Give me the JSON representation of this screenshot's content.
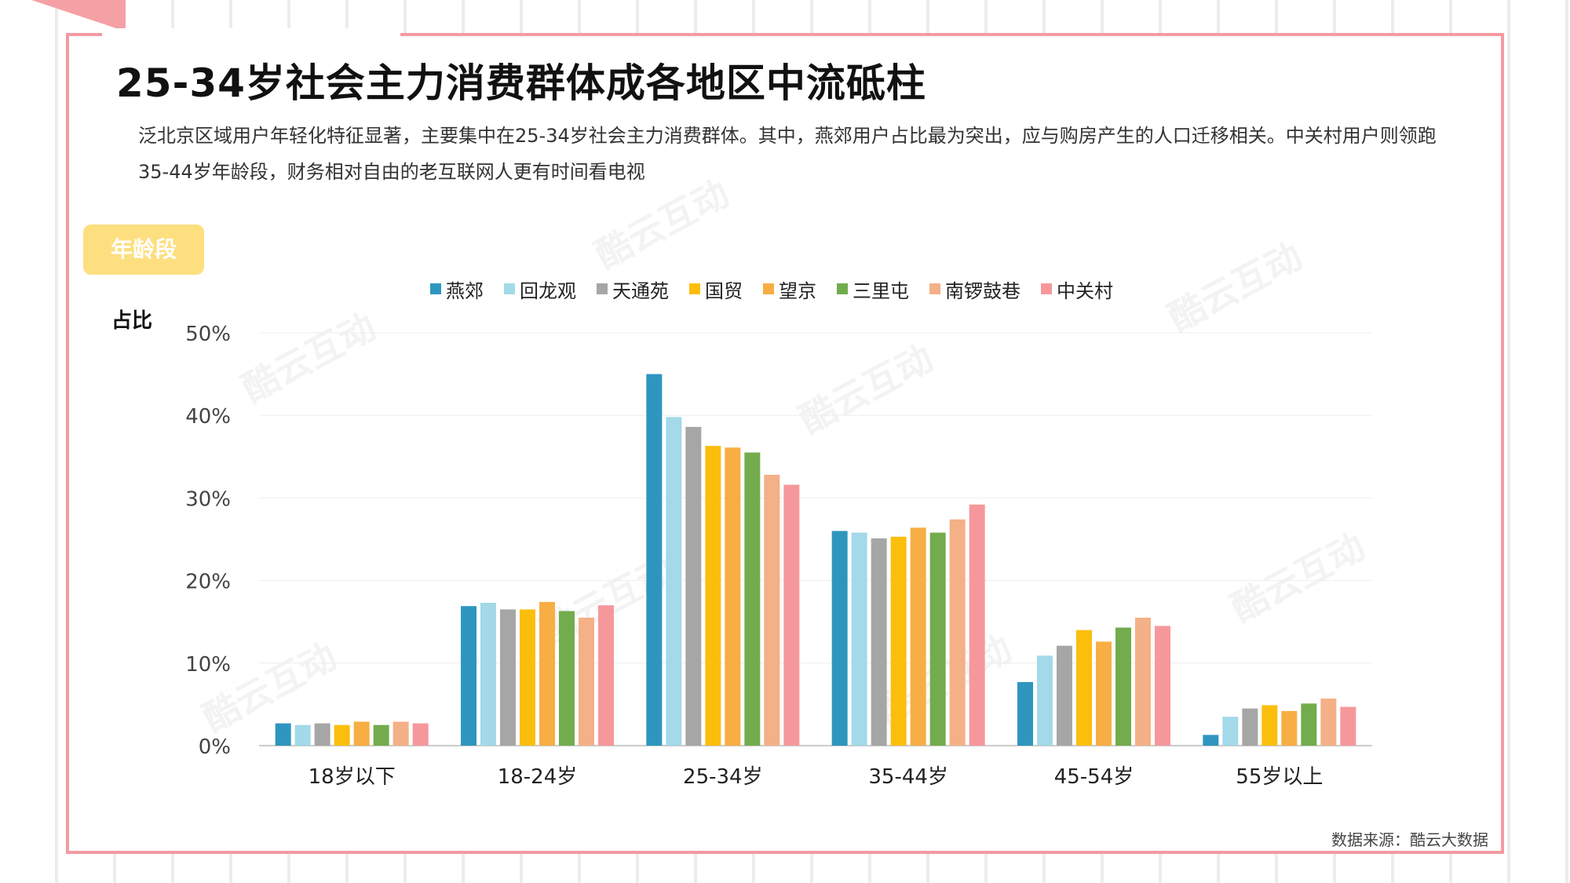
{
  "header": {
    "title": "25-34岁社会主力消费群体成各地区中流砥柱",
    "description": "泛北京区域用户年轻化特征显著，主要集中在25-34岁社会主力消费群体。其中，燕郊用户占比最为突出，应与购房产生的人口迁移相关。中关村用户则领跑35-44岁年龄段，财务相对自由的老互联网人更有时间看电视"
  },
  "badge": {
    "label": "年龄段"
  },
  "watermark_text": "酷云互动",
  "source": "数据来源：酷云大数据",
  "chart_data": {
    "type": "bar",
    "title": "",
    "xlabel": "",
    "ylabel": "占比",
    "ylim": [
      0,
      50
    ],
    "yticks": [
      "0%",
      "10%",
      "20%",
      "30%",
      "40%",
      "50%"
    ],
    "grid": true,
    "legend": "top",
    "categories": [
      "18岁以下",
      "18-24岁",
      "25-34岁",
      "35-44岁",
      "45-54岁",
      "55岁以上"
    ],
    "series": [
      {
        "name": "燕郊",
        "color": "#2e96be",
        "values": [
          2.7,
          16.9,
          45.0,
          26.0,
          7.7,
          1.3
        ]
      },
      {
        "name": "回龙观",
        "color": "#a3d9e8",
        "values": [
          2.5,
          17.3,
          39.8,
          25.8,
          10.9,
          3.5
        ]
      },
      {
        "name": "天通苑",
        "color": "#a6a6a6",
        "values": [
          2.7,
          16.5,
          38.6,
          25.1,
          12.1,
          4.5
        ]
      },
      {
        "name": "国贸",
        "color": "#fcbe0c",
        "values": [
          2.5,
          16.5,
          36.3,
          25.3,
          14.0,
          4.9
        ]
      },
      {
        "name": "望京",
        "color": "#f7ae44",
        "values": [
          2.9,
          17.4,
          36.1,
          26.4,
          12.6,
          4.2
        ]
      },
      {
        "name": "三里屯",
        "color": "#72ac4c",
        "values": [
          2.5,
          16.3,
          35.5,
          25.8,
          14.3,
          5.1
        ]
      },
      {
        "name": "南锣鼓巷",
        "color": "#f4b086",
        "values": [
          2.9,
          15.5,
          32.8,
          27.4,
          15.5,
          5.7
        ]
      },
      {
        "name": "中关村",
        "color": "#f6989b",
        "values": [
          2.7,
          17.0,
          31.6,
          29.2,
          14.5,
          4.7
        ]
      }
    ]
  }
}
